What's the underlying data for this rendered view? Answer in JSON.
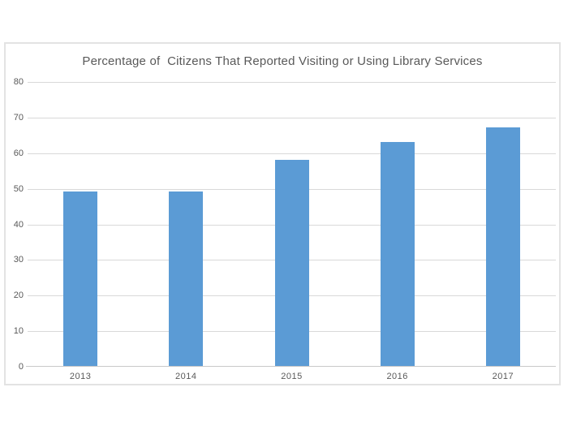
{
  "page": {
    "background": "#ffffff"
  },
  "chart": {
    "frame_border_color": "#e3e3e3",
    "title_color": "#595959",
    "tick_label_color": "#595959",
    "gridline_color": "#d9d9d9",
    "axis_line_color": "#c9c9c9",
    "bar_color": "#5b9bd5"
  },
  "chart_data": {
    "type": "bar",
    "title": "Percentage of  Citizens That Reported Visiting or Using Library Services",
    "categories": [
      "2013",
      "2014",
      "2015",
      "2016",
      "2017"
    ],
    "values": [
      49,
      49,
      58,
      63,
      67
    ],
    "xlabel": "",
    "ylabel": "",
    "ylim": [
      0,
      80
    ],
    "yticks": [
      0,
      10,
      20,
      30,
      40,
      50,
      60,
      70,
      80
    ],
    "grid": true,
    "legend": false,
    "bar_color": "#5b9bd5"
  }
}
